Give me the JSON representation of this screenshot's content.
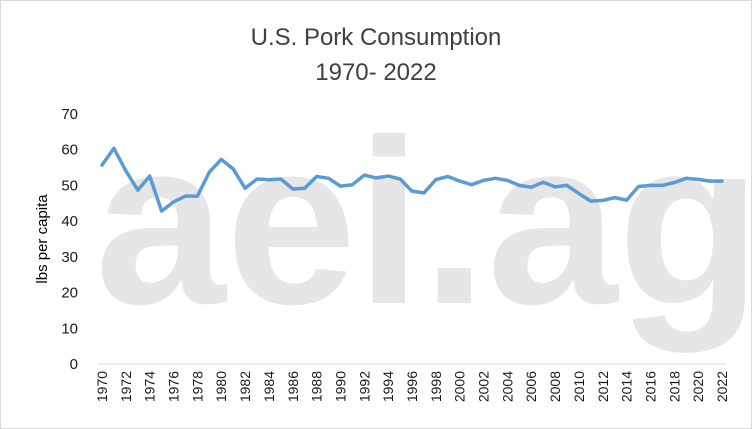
{
  "chart_data": {
    "type": "line",
    "title": "U.S. Pork Consumption",
    "subtitle": "1970- 2022",
    "xlabel": "",
    "ylabel": "lbs per capita",
    "ylim": [
      0,
      70
    ],
    "yticks": [
      0,
      10,
      20,
      30,
      40,
      50,
      60,
      70
    ],
    "grid": false,
    "legend": "none",
    "watermark": "aei.ag",
    "line_color": "#5b9bd5",
    "x": [
      1970,
      1971,
      1972,
      1973,
      1974,
      1975,
      1976,
      1977,
      1978,
      1979,
      1980,
      1981,
      1982,
      1983,
      1984,
      1985,
      1986,
      1987,
      1988,
      1989,
      1990,
      1991,
      1992,
      1993,
      1994,
      1995,
      1996,
      1997,
      1998,
      1999,
      2000,
      2001,
      2002,
      2003,
      2004,
      2005,
      2006,
      2007,
      2008,
      2009,
      2010,
      2011,
      2012,
      2013,
      2014,
      2015,
      2016,
      2017,
      2018,
      2019,
      2020,
      2021,
      2022
    ],
    "xtick_labels": [
      "1970",
      "1972",
      "1974",
      "1976",
      "1978",
      "1980",
      "1982",
      "1984",
      "1986",
      "1988",
      "1990",
      "1992",
      "1994",
      "1996",
      "1998",
      "2000",
      "2002",
      "2004",
      "2006",
      "2008",
      "2010",
      "2012",
      "2014",
      "2016",
      "2018",
      "2020",
      "2022"
    ],
    "series": [
      {
        "name": "Pork consumption",
        "values": [
          55.7,
          60.4,
          54.1,
          48.7,
          52.6,
          42.8,
          45.4,
          47.0,
          47.0,
          53.7,
          57.3,
          54.6,
          49.2,
          51.8,
          51.6,
          51.8,
          49.0,
          49.2,
          52.5,
          52.0,
          49.8,
          50.2,
          52.9,
          52.1,
          52.6,
          51.8,
          48.4,
          47.9,
          51.6,
          52.5,
          51.2,
          50.2,
          51.4,
          52.0,
          51.4,
          50.0,
          49.5,
          50.9,
          49.6,
          50.0,
          47.7,
          45.6,
          45.8,
          46.6,
          45.9,
          49.7,
          50.0,
          50.0,
          50.8,
          52.0,
          51.7,
          51.2,
          51.2
        ]
      }
    ]
  }
}
